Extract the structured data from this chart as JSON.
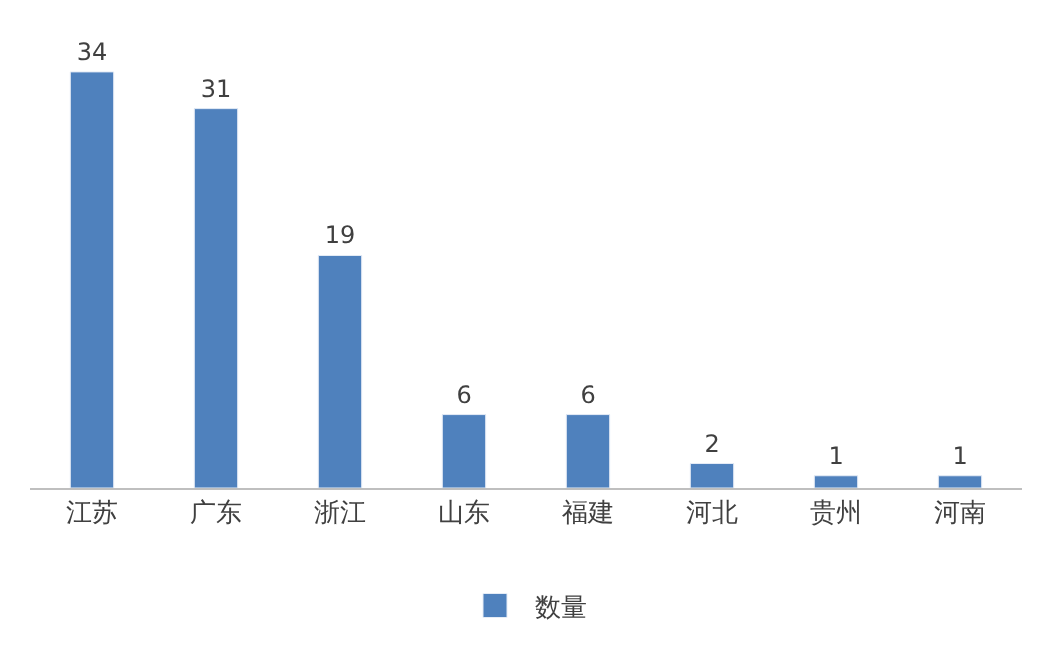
{
  "chart_data": {
    "type": "bar",
    "categories": [
      "江苏",
      "广东",
      "浙江",
      "山东",
      "福建",
      "河北",
      "贵州",
      "河南"
    ],
    "series": [
      {
        "name": "数量",
        "color": "#4f81bd",
        "values": [
          34,
          31,
          19,
          6,
          6,
          2,
          1,
          1
        ]
      }
    ],
    "data_labels": true,
    "legend": "bottom"
  }
}
